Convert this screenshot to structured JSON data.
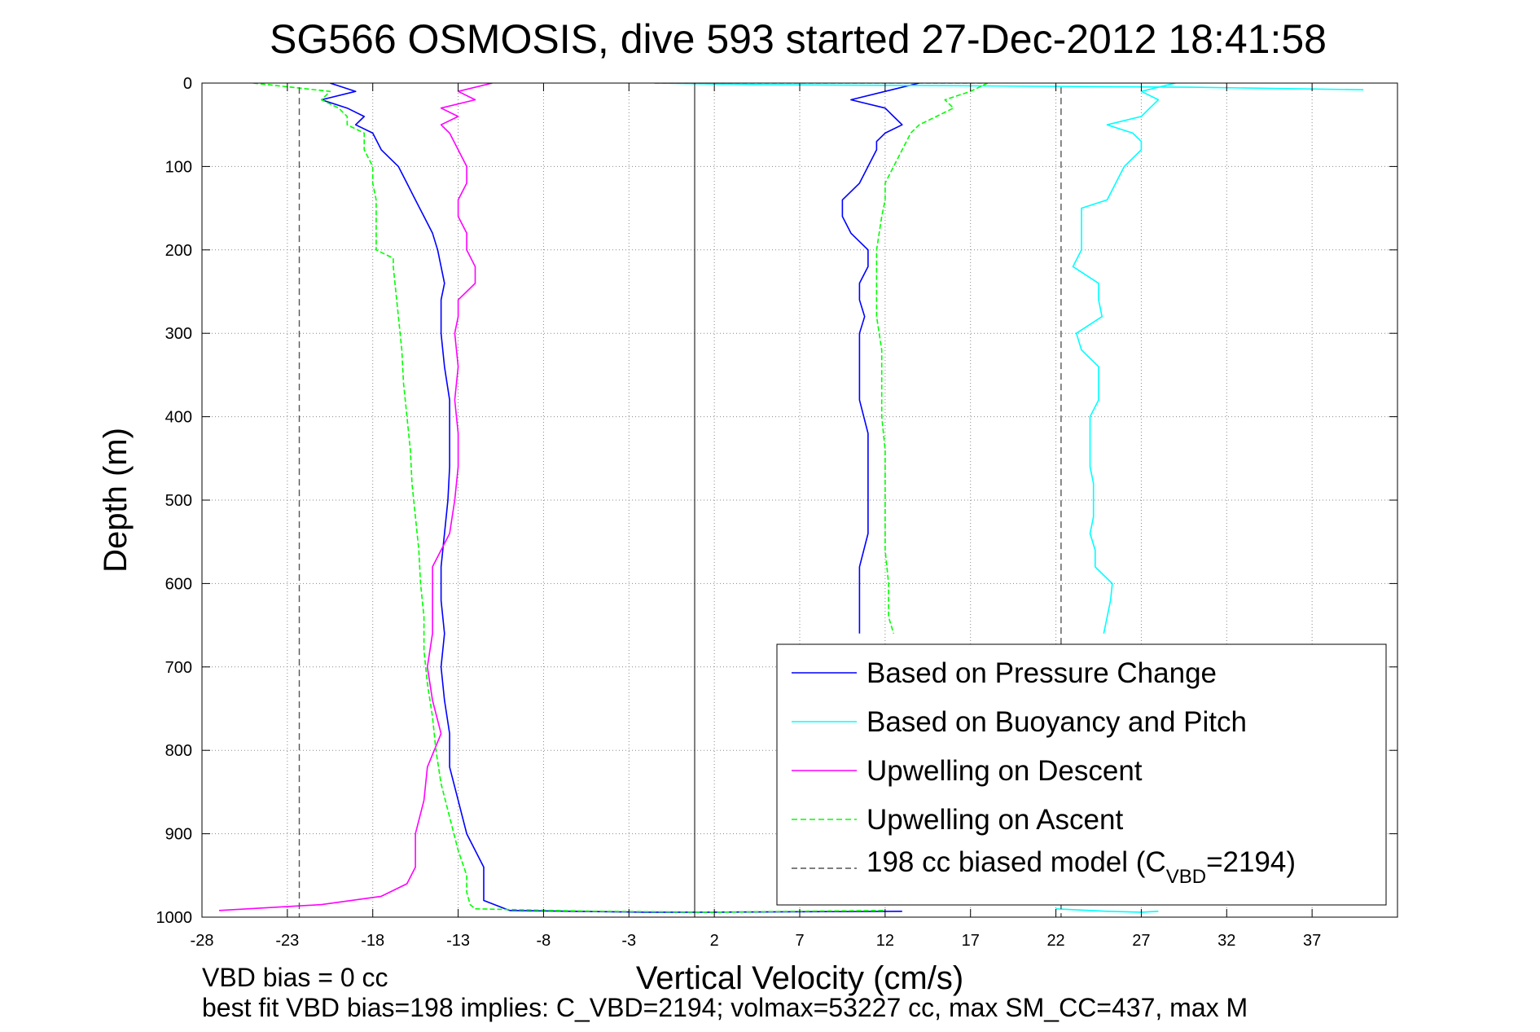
{
  "chart_data": {
    "type": "line",
    "title": "SG566 OSMOSIS, dive 593 started 27-Dec-2012 18:41:58",
    "xlabel": "Vertical Velocity (cm/s)",
    "ylabel": "Depth (m)",
    "xlim": [
      -28,
      42
    ],
    "ylim": [
      0,
      1000
    ],
    "y_reversed": true,
    "grid": true,
    "legend_position": "bottom-right",
    "xticks": [
      "-28",
      "-23",
      "-18",
      "-13",
      "-8",
      "-3",
      "2",
      "7",
      "12",
      "17",
      "22",
      "27",
      "32",
      "37"
    ],
    "yticks": [
      "0",
      "100",
      "200",
      "300",
      "400",
      "500",
      "600",
      "700",
      "800",
      "900",
      "1000"
    ],
    "notes": [
      "VBD bias = 0 cc",
      "best fit VBD bias=198 implies: C_VBD=2194; volmax=53227 cc, max SM_CC=437, max M"
    ],
    "legend": {
      "pressure": "Based on Pressure Change",
      "buoyancy": "Based on Buoyancy and Pitch",
      "descent": "Upwelling on Descent",
      "ascent": "Upwelling on Ascent",
      "model_prefix": "198 cc biased model (C",
      "model_sub": "VBD",
      "model_suffix": "=2194)"
    },
    "series": [
      {
        "key": "pressure",
        "name": "Based on Pressure Change",
        "color": "#0000ff",
        "style": "solid",
        "segments": [
          {
            "depth": [
              0,
              10,
              20,
              30,
              40,
              50,
              60,
              80,
              100,
              120,
              140,
              160,
              180,
              200,
              220,
              240,
              260,
              280,
              300,
              340,
              380,
              420,
              460,
              500,
              540,
              580,
              620,
              660,
              700,
              740,
              780,
              820,
              860,
              900,
              940,
              980,
              992
            ],
            "velocity": [
              -20.5,
              -19,
              -21,
              -19.5,
              -18.5,
              -19,
              -18,
              -17.5,
              -16.5,
              -16,
              -15.5,
              -15,
              -14.5,
              -14.2,
              -14,
              -13.8,
              -14,
              -14,
              -14,
              -13.8,
              -13.5,
              -13.5,
              -13.5,
              -13.6,
              -13.8,
              -14,
              -14,
              -13.8,
              -14,
              -13.8,
              -13.5,
              -13.5,
              -13,
              -12.5,
              -11.5,
              -11.5,
              -10
            ]
          },
          {
            "depth": [
              0,
              10,
              20,
              30,
              40,
              50,
              60,
              70,
              80,
              100,
              120,
              140,
              160,
              180,
              200,
              220,
              240,
              260,
              280,
              300,
              340,
              380,
              420,
              460,
              500,
              540,
              580,
              620,
              660
            ],
            "velocity": [
              14,
              12,
              10,
              12,
              12.5,
              13,
              12,
              11.5,
              11.5,
              11,
              10.5,
              9.5,
              9.5,
              10,
              11,
              11,
              10.5,
              10.5,
              10.8,
              10.5,
              10.5,
              10.5,
              11,
              11,
              11,
              11,
              10.5,
              10.5,
              10.5
            ]
          },
          {
            "depth": [
              992,
              994,
              994,
              993
            ],
            "velocity": [
              -10,
              -2,
              2,
              13
            ]
          }
        ]
      },
      {
        "key": "buoyancy",
        "name": "Based on Buoyancy and Pitch",
        "color": "#00ffff",
        "style": "solid",
        "segments": [
          {
            "depth": [
              0,
              10,
              20,
              30,
              40,
              50,
              60,
              70,
              80,
              90,
              100,
              120,
              140,
              150,
              160,
              180,
              200,
              220,
              240,
              260,
              280,
              300,
              320,
              340,
              360,
              380,
              400,
              420,
              440,
              460,
              480,
              500,
              520,
              540,
              560,
              580,
              600,
              620,
              640,
              660
            ],
            "velocity": [
              29,
              27,
              28,
              27.5,
              27,
              25,
              26.5,
              27,
              27,
              26.5,
              26,
              25.5,
              25,
              23.5,
              23.5,
              23.5,
              23.5,
              23,
              24.5,
              24.5,
              24.7,
              23.2,
              23.5,
              24.5,
              24.5,
              24.5,
              24,
              24,
              24,
              24,
              24.2,
              24.2,
              24.2,
              24,
              24.3,
              24.3,
              25.3,
              25.2,
              25,
              24.8
            ]
          },
          {
            "depth": [
              0,
              2,
              3,
              5,
              8
            ],
            "velocity": [
              -1.5,
              5,
              15,
              30,
              40
            ]
          },
          {
            "depth": [
              990,
              993,
              994,
              993
            ],
            "velocity": [
              22,
              25,
              27,
              28
            ]
          }
        ]
      },
      {
        "key": "descent",
        "name": "Upwelling on Descent",
        "color": "#ff00ff",
        "style": "solid",
        "segments": [
          {
            "depth": [
              0,
              10,
              20,
              30,
              40,
              50,
              60,
              80,
              100,
              120,
              140,
              160,
              180,
              200,
              220,
              240,
              260,
              280,
              300,
              340,
              380,
              420,
              460,
              500,
              540,
              580,
              620,
              660,
              700,
              740,
              780,
              820,
              860,
              900,
              940,
              960,
              975,
              985,
              992
            ],
            "velocity": [
              -11,
              -13,
              -12,
              -14,
              -13,
              -14,
              -13.5,
              -13,
              -12.5,
              -12.5,
              -13,
              -13,
              -12.5,
              -12.5,
              -12,
              -12,
              -13,
              -13,
              -13.2,
              -13,
              -13.2,
              -13,
              -13,
              -13.2,
              -13.5,
              -14.5,
              -14.5,
              -14.5,
              -14.8,
              -14.5,
              -14,
              -14.8,
              -15,
              -15.5,
              -15.5,
              -16,
              -17.5,
              -21,
              -27
            ]
          }
        ]
      },
      {
        "key": "ascent",
        "name": "Upwelling on Ascent",
        "color": "#00ff00",
        "style": "dashed",
        "segments": [
          {
            "depth": [
              0,
              10,
              20,
              30,
              40,
              50,
              60,
              80,
              100,
              120,
              140,
              160,
              180,
              200,
              210,
              220,
              240,
              280,
              320,
              360,
              400,
              440,
              480,
              520,
              560,
              600,
              640,
              680,
              720,
              760,
              800,
              840,
              880,
              920,
              950,
              970,
              985,
              990
            ],
            "velocity": [
              -25,
              -20.5,
              -21,
              -20,
              -19.5,
              -19.5,
              -18.5,
              -18.5,
              -18,
              -18,
              -17.8,
              -17.8,
              -17.8,
              -17.8,
              -16.8,
              -16.8,
              -16.7,
              -16.5,
              -16.3,
              -16.2,
              -16,
              -15.8,
              -15.7,
              -15.5,
              -15.3,
              -15.2,
              -15,
              -15,
              -14.8,
              -14.5,
              -14.3,
              -14,
              -13.5,
              -13,
              -12.5,
              -12.5,
              -12.3,
              -12
            ]
          },
          {
            "depth": [
              0,
              10,
              20,
              30,
              40,
              50,
              60,
              80,
              100,
              120,
              140,
              160,
              200,
              240,
              280,
              320,
              360,
              400,
              440,
              480,
              520,
              560,
              600,
              640,
              660
            ],
            "velocity": [
              18,
              17,
              15.5,
              16,
              15,
              14,
              13.5,
              13,
              12.5,
              12,
              12,
              11.8,
              11.5,
              11.5,
              11.5,
              11.8,
              11.8,
              11.8,
              12,
              12,
              12,
              12,
              12.2,
              12.2,
              12.5
            ]
          },
          {
            "depth": [
              0,
              0,
              0
            ],
            "velocity": [
              -1.5,
              5,
              18
            ]
          },
          {
            "depth": [
              990,
              993,
              994,
              992
            ],
            "velocity": [
              -12,
              -5,
              2,
              12
            ]
          }
        ]
      },
      {
        "key": "model",
        "name": "198 cc biased model (CVBD=2194)",
        "color": "#555555",
        "style": "dashed",
        "segments": [
          {
            "depth": [
              5,
              1000
            ],
            "velocity": [
              -22.3,
              -22.3
            ]
          },
          {
            "depth": [
              5,
              1000
            ],
            "velocity": [
              22.3,
              22.3
            ]
          }
        ]
      }
    ]
  }
}
